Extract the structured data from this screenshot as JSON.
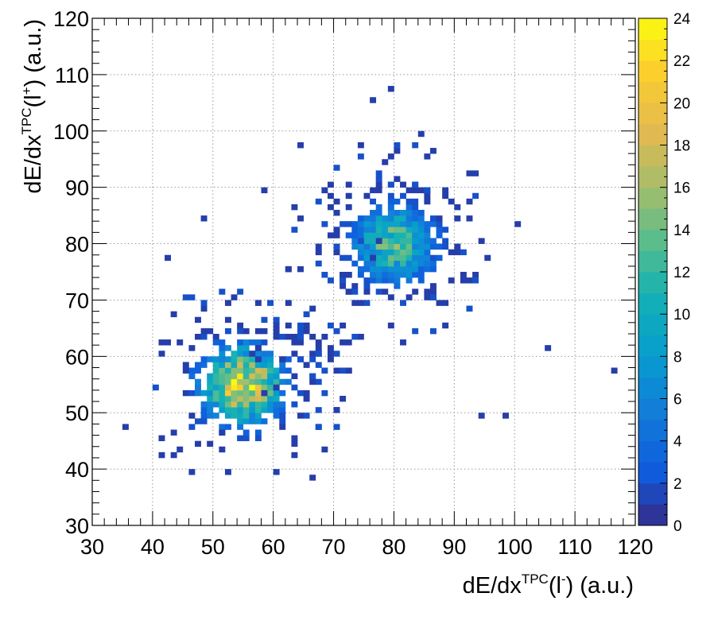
{
  "chart_data": {
    "type": "heatmap",
    "x_axis": {
      "label_parts": [
        "dE/dx",
        "TPC",
        "(l",
        "-",
        ") (a.u.)"
      ],
      "range": [
        30,
        120
      ],
      "ticks": [
        30,
        40,
        50,
        60,
        70,
        80,
        90,
        100,
        110,
        120
      ]
    },
    "y_axis": {
      "label_parts": [
        "dE/dx",
        "TPC",
        "(l",
        "+",
        ") (a.u.)"
      ],
      "range": [
        30,
        120
      ],
      "ticks": [
        30,
        40,
        50,
        60,
        70,
        80,
        90,
        100,
        110,
        120
      ]
    },
    "z_axis": {
      "range": [
        0,
        24
      ],
      "ticks": [
        0,
        2,
        4,
        6,
        8,
        10,
        12,
        14,
        16,
        18,
        20,
        22,
        24
      ]
    },
    "grid": true,
    "colormap": "parula",
    "bin_width": 1,
    "clusters": [
      {
        "x_center": 55,
        "y_center": 55,
        "peak_count": 24
      },
      {
        "x_center": 80,
        "y_center": 80,
        "peak_count": 16
      }
    ],
    "isolated_points": [
      [
        79,
        107
      ],
      [
        76,
        105
      ],
      [
        84,
        99
      ],
      [
        64,
        97
      ],
      [
        74,
        97
      ],
      [
        85,
        95
      ],
      [
        105,
        61
      ],
      [
        116,
        57
      ],
      [
        66,
        38
      ],
      [
        35,
        47
      ],
      [
        52,
        39
      ],
      [
        44,
        43
      ],
      [
        100,
        83
      ],
      [
        98,
        49
      ],
      [
        94,
        49
      ],
      [
        48,
        84
      ],
      [
        58,
        89
      ],
      [
        42,
        77
      ]
    ]
  }
}
